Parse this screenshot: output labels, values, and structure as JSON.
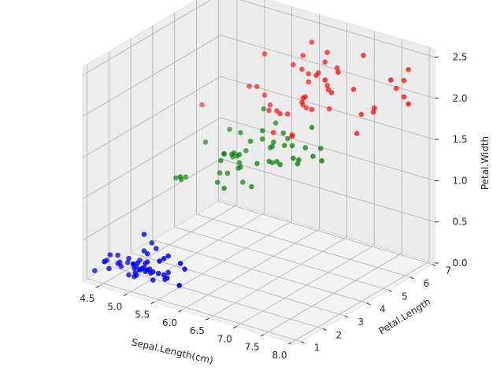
{
  "chart_data": {
    "type": "scatter3d",
    "title": "",
    "xlabel": "Sepal.Length(cm)",
    "ylabel": "Petal.Length",
    "zlabel": "Petal.Width",
    "xlim": [
      4.2,
      8.1
    ],
    "ylim": [
      0.8,
      7.1
    ],
    "zlim": [
      0,
      2.6
    ],
    "x_ticks": [
      "4.5",
      "5.0",
      "5.5",
      "6.0",
      "6.5",
      "7.0",
      "7.5",
      "8.0"
    ],
    "y_ticks": [
      "1",
      "2",
      "3",
      "4",
      "5",
      "6",
      "7"
    ],
    "z_ticks": [
      "0.0",
      "0.5",
      "1.0",
      "1.5",
      "2.0",
      "2.5"
    ],
    "grid": true,
    "legend": "none",
    "series": [
      {
        "color": "#0000ff",
        "points": [
          [
            5.1,
            1.4,
            0.2
          ],
          [
            4.9,
            1.4,
            0.2
          ],
          [
            4.7,
            1.3,
            0.2
          ],
          [
            4.6,
            1.5,
            0.2
          ],
          [
            5.0,
            1.4,
            0.2
          ],
          [
            5.4,
            1.7,
            0.4
          ],
          [
            4.6,
            1.4,
            0.3
          ],
          [
            5.0,
            1.5,
            0.2
          ],
          [
            4.4,
            1.4,
            0.2
          ],
          [
            4.9,
            1.5,
            0.1
          ],
          [
            5.4,
            1.5,
            0.2
          ],
          [
            4.8,
            1.6,
            0.2
          ],
          [
            4.8,
            1.4,
            0.1
          ],
          [
            4.3,
            1.1,
            0.1
          ],
          [
            5.8,
            1.2,
            0.2
          ],
          [
            5.7,
            1.5,
            0.4
          ],
          [
            5.4,
            1.3,
            0.4
          ],
          [
            5.1,
            1.4,
            0.3
          ],
          [
            5.7,
            1.7,
            0.3
          ],
          [
            5.1,
            1.5,
            0.3
          ],
          [
            5.4,
            1.7,
            0.2
          ],
          [
            5.1,
            1.5,
            0.4
          ],
          [
            4.6,
            1.0,
            0.2
          ],
          [
            5.1,
            1.7,
            0.5
          ],
          [
            4.8,
            1.9,
            0.2
          ],
          [
            5.0,
            1.6,
            0.2
          ],
          [
            5.0,
            1.6,
            0.4
          ],
          [
            5.2,
            1.5,
            0.2
          ],
          [
            5.2,
            1.4,
            0.2
          ],
          [
            4.7,
            1.6,
            0.2
          ],
          [
            4.8,
            1.6,
            0.2
          ],
          [
            5.4,
            1.5,
            0.4
          ],
          [
            5.2,
            1.5,
            0.1
          ],
          [
            5.5,
            1.4,
            0.2
          ],
          [
            4.9,
            1.5,
            0.2
          ],
          [
            5.0,
            1.2,
            0.2
          ],
          [
            5.5,
            1.3,
            0.2
          ],
          [
            4.9,
            1.4,
            0.1
          ],
          [
            4.4,
            1.3,
            0.2
          ],
          [
            5.1,
            1.5,
            0.2
          ],
          [
            5.0,
            1.3,
            0.3
          ],
          [
            4.5,
            1.3,
            0.3
          ],
          [
            4.4,
            1.3,
            0.2
          ],
          [
            5.0,
            1.6,
            0.6
          ],
          [
            5.1,
            1.9,
            0.4
          ],
          [
            4.8,
            1.4,
            0.3
          ],
          [
            5.1,
            1.6,
            0.2
          ],
          [
            4.6,
            1.4,
            0.2
          ],
          [
            5.3,
            1.5,
            0.2
          ],
          [
            5.0,
            1.4,
            0.2
          ]
        ]
      },
      {
        "color": "#008000",
        "points": [
          [
            7.0,
            4.7,
            1.4
          ],
          [
            6.4,
            4.5,
            1.5
          ],
          [
            6.9,
            4.9,
            1.5
          ],
          [
            5.5,
            4.0,
            1.3
          ],
          [
            6.5,
            4.6,
            1.5
          ],
          [
            5.7,
            4.5,
            1.3
          ],
          [
            6.3,
            4.7,
            1.6
          ],
          [
            4.9,
            3.3,
            1.0
          ],
          [
            6.6,
            4.6,
            1.3
          ],
          [
            5.2,
            3.9,
            1.4
          ],
          [
            5.0,
            3.5,
            1.0
          ],
          [
            5.9,
            4.2,
            1.5
          ],
          [
            6.0,
            4.0,
            1.0
          ],
          [
            6.1,
            4.7,
            1.4
          ],
          [
            5.6,
            3.6,
            1.3
          ],
          [
            6.7,
            4.4,
            1.4
          ],
          [
            5.6,
            4.5,
            1.5
          ],
          [
            5.8,
            4.1,
            1.0
          ],
          [
            6.2,
            4.5,
            1.5
          ],
          [
            5.6,
            3.9,
            1.1
          ],
          [
            5.9,
            4.8,
            1.8
          ],
          [
            6.1,
            4.0,
            1.3
          ],
          [
            6.3,
            4.9,
            1.5
          ],
          [
            6.1,
            4.7,
            1.2
          ],
          [
            6.4,
            4.3,
            1.3
          ],
          [
            6.6,
            4.4,
            1.4
          ],
          [
            6.8,
            4.8,
            1.4
          ],
          [
            6.7,
            5.0,
            1.7
          ],
          [
            6.0,
            4.5,
            1.5
          ],
          [
            5.7,
            3.5,
            1.0
          ],
          [
            5.5,
            3.8,
            1.1
          ],
          [
            5.5,
            3.7,
            1.0
          ],
          [
            5.8,
            3.9,
            1.2
          ],
          [
            6.0,
            5.1,
            1.6
          ],
          [
            5.4,
            4.5,
            1.5
          ],
          [
            6.0,
            4.5,
            1.6
          ],
          [
            6.7,
            4.7,
            1.5
          ],
          [
            6.3,
            4.4,
            1.3
          ],
          [
            5.6,
            4.1,
            1.3
          ],
          [
            5.5,
            4.0,
            1.3
          ],
          [
            5.5,
            4.4,
            1.2
          ],
          [
            6.1,
            4.6,
            1.4
          ],
          [
            5.8,
            4.0,
            1.2
          ],
          [
            5.0,
            3.3,
            1.0
          ],
          [
            5.6,
            4.2,
            1.3
          ],
          [
            5.7,
            4.2,
            1.2
          ],
          [
            5.7,
            4.2,
            1.3
          ],
          [
            6.2,
            4.3,
            1.3
          ],
          [
            5.1,
            3.0,
            1.1
          ],
          [
            5.7,
            4.1,
            1.3
          ]
        ]
      },
      {
        "color": "#ff0000",
        "points": [
          [
            6.3,
            6.0,
            2.5
          ],
          [
            5.8,
            5.1,
            1.9
          ],
          [
            7.1,
            5.9,
            2.1
          ],
          [
            6.3,
            5.6,
            1.8
          ],
          [
            6.5,
            5.8,
            2.2
          ],
          [
            7.6,
            6.6,
            2.1
          ],
          [
            4.9,
            4.5,
            1.7
          ],
          [
            7.3,
            6.3,
            1.8
          ],
          [
            6.7,
            5.8,
            1.8
          ],
          [
            7.2,
            6.1,
            2.5
          ],
          [
            6.5,
            5.1,
            2.0
          ],
          [
            6.4,
            5.3,
            1.9
          ],
          [
            6.8,
            5.5,
            2.1
          ],
          [
            5.7,
            5.0,
            2.0
          ],
          [
            5.8,
            5.1,
            2.4
          ],
          [
            6.4,
            5.3,
            2.3
          ],
          [
            6.5,
            5.5,
            1.8
          ],
          [
            7.7,
            6.7,
            2.2
          ],
          [
            7.7,
            6.9,
            2.3
          ],
          [
            6.0,
            5.0,
            1.5
          ],
          [
            6.9,
            5.7,
            2.3
          ],
          [
            5.6,
            4.9,
            2.0
          ],
          [
            7.7,
            6.7,
            2.0
          ],
          [
            6.3,
            4.9,
            1.8
          ],
          [
            6.7,
            5.7,
            2.1
          ],
          [
            7.2,
            6.0,
            1.8
          ],
          [
            6.2,
            4.8,
            1.8
          ],
          [
            6.1,
            4.9,
            1.8
          ],
          [
            6.4,
            5.6,
            2.1
          ],
          [
            7.2,
            5.8,
            1.6
          ],
          [
            7.4,
            6.1,
            1.9
          ],
          [
            7.9,
            6.4,
            2.0
          ],
          [
            6.4,
            5.6,
            2.2
          ],
          [
            6.3,
            5.1,
            1.5
          ],
          [
            6.1,
            5.6,
            1.4
          ],
          [
            7.7,
            6.1,
            2.3
          ],
          [
            6.3,
            5.6,
            2.4
          ],
          [
            6.4,
            5.5,
            1.8
          ],
          [
            6.0,
            4.8,
            1.8
          ],
          [
            6.9,
            5.4,
            2.1
          ],
          [
            6.7,
            5.6,
            2.4
          ],
          [
            6.9,
            5.1,
            2.3
          ],
          [
            6.8,
            5.9,
            2.3
          ],
          [
            6.7,
            5.7,
            2.5
          ],
          [
            6.7,
            5.2,
            2.3
          ],
          [
            6.5,
            5.2,
            2.0
          ],
          [
            6.2,
            5.4,
            2.3
          ],
          [
            5.9,
            5.1,
            1.8
          ]
        ]
      }
    ]
  }
}
